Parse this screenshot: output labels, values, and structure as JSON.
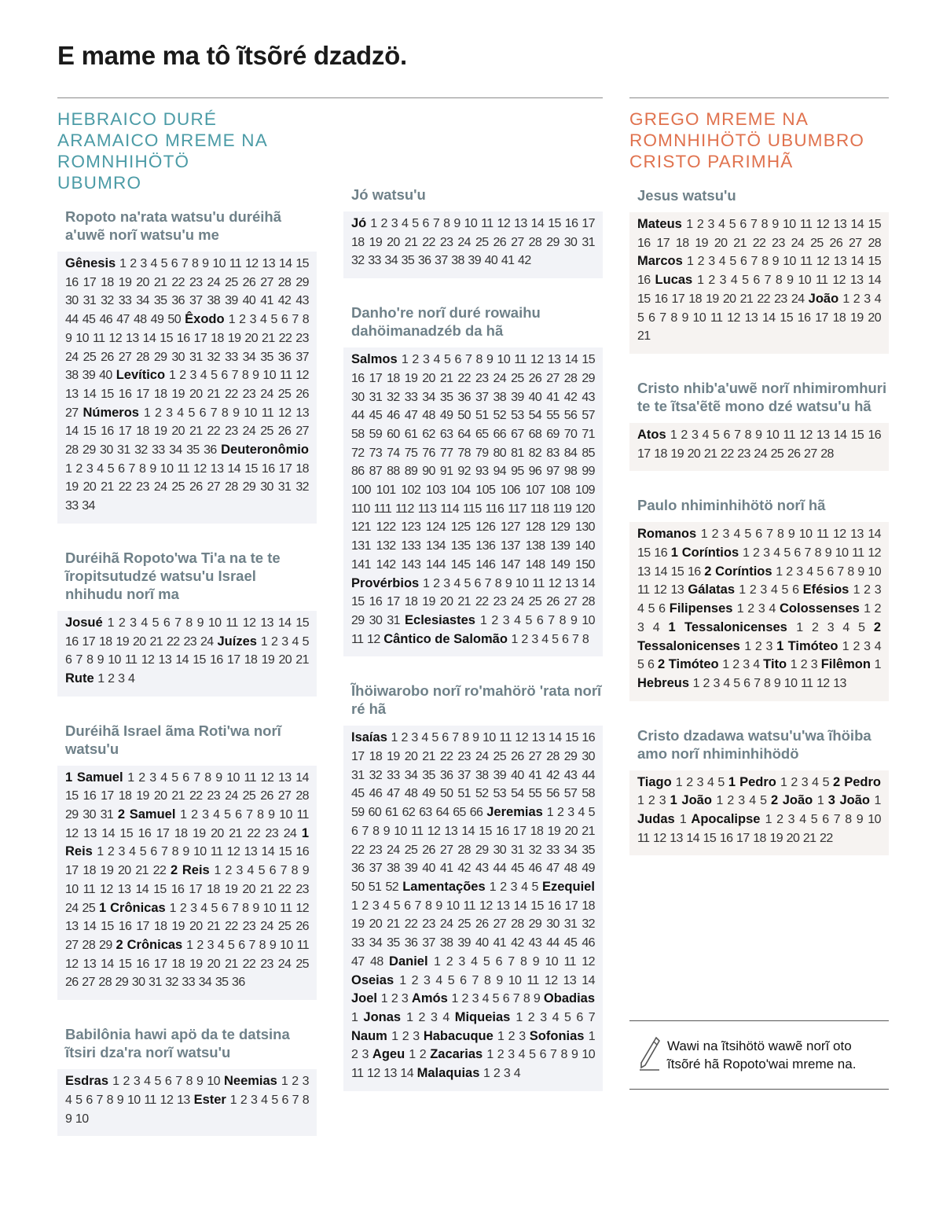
{
  "title": "E mame ma tô ĩtsõré dzadzö.",
  "colors": {
    "hebrew_heading": "#4b9ba6",
    "greek_heading": "#e0724e",
    "subheading": "#6f8189"
  },
  "hebrew": {
    "heading": "HEBRAICO DURÉ ARAMAICO MREME NA ROMNHIHÖTÖ UBUMRO",
    "sections": [
      {
        "title": "Ropoto na'rata watsu'u duréihã a'uwẽ norĩ watsu'u me",
        "books": [
          {
            "name": "Gênesis",
            "chapters": 50
          },
          {
            "name": "Êxodo",
            "chapters": 40
          },
          {
            "name": "Levítico",
            "chapters": 27
          },
          {
            "name": "Números",
            "chapters": 36
          },
          {
            "name": "Deuteronômio",
            "chapters": 34
          }
        ]
      },
      {
        "title": "Duréihã Ropoto'wa Ti'a na te te ĩropitsutudzé watsu'u Israel nhihudu norĩ ma",
        "books": [
          {
            "name": "Josué",
            "chapters": 24
          },
          {
            "name": "Juízes",
            "chapters": 21
          },
          {
            "name": "Rute",
            "chapters": 4
          }
        ]
      },
      {
        "title": "Duréihã Israel ãma Roti'wa norĩ watsu'u",
        "books": [
          {
            "name": "1 Samuel",
            "chapters": 31
          },
          {
            "name": "2 Samuel",
            "chapters": 24
          },
          {
            "name": "1 Reis",
            "chapters": 22
          },
          {
            "name": "2 Reis",
            "chapters": 25
          },
          {
            "name": "1 Crônicas",
            "chapters": 29
          },
          {
            "name": "2 Crônicas",
            "chapters": 36
          }
        ]
      },
      {
        "title": "Babilônia hawi apö da te datsina ĩtsiri dza'ra norĩ watsu'u",
        "books": [
          {
            "name": "Esdras",
            "chapters": 10
          },
          {
            "name": "Neemias",
            "chapters": 13
          },
          {
            "name": "Ester",
            "chapters": 10
          }
        ]
      },
      {
        "title": "Jó watsu'u",
        "books": [
          {
            "name": "Jó",
            "chapters": 42
          }
        ]
      },
      {
        "title": "Danho're norĩ duré rowaihu dahöimanadzéb da hã",
        "books": [
          {
            "name": "Salmos",
            "chapters": 150
          },
          {
            "name": "Provérbios",
            "chapters": 31
          },
          {
            "name": "Eclesiastes",
            "chapters": 12
          },
          {
            "name": "Cântico de Salomão",
            "chapters": 8
          }
        ]
      },
      {
        "title": "Ĩhöiwarobo norĩ ro'mahörö 'rata norĩ ré hã",
        "books": [
          {
            "name": "Isaías",
            "chapters": 66
          },
          {
            "name": "Jeremias",
            "chapters": 52
          },
          {
            "name": "Lamentações",
            "chapters": 5
          },
          {
            "name": "Ezequiel",
            "chapters": 48
          },
          {
            "name": "Daniel",
            "chapters": 12
          },
          {
            "name": "Oseias",
            "chapters": 14
          },
          {
            "name": "Joel",
            "chapters": 3
          },
          {
            "name": "Amós",
            "chapters": 9
          },
          {
            "name": "Obadias",
            "chapters": 1
          },
          {
            "name": "Jonas",
            "chapters": 4
          },
          {
            "name": "Miqueias",
            "chapters": 7
          },
          {
            "name": "Naum",
            "chapters": 3
          },
          {
            "name": "Habacuque",
            "chapters": 3
          },
          {
            "name": "Sofonias",
            "chapters": 3
          },
          {
            "name": "Ageu",
            "chapters": 2
          },
          {
            "name": "Zacarias",
            "chapters": 14
          },
          {
            "name": "Malaquias",
            "chapters": 4
          }
        ]
      }
    ]
  },
  "greek": {
    "heading": "GREGO MREME NA ROMNHIHÖTÖ UBUMBRO CRISTO PARIMHÃ",
    "sections": [
      {
        "title": "Jesus watsu'u",
        "books": [
          {
            "name": "Mateus",
            "chapters": 28
          },
          {
            "name": "Marcos",
            "chapters": 16
          },
          {
            "name": "Lucas",
            "chapters": 24
          },
          {
            "name": "João",
            "chapters": 21
          }
        ]
      },
      {
        "title": "Cristo nhib'a'uwẽ norĩ nhimiromhuri te te ĩtsa'ẽtẽ mono dzé watsu'u hã",
        "books": [
          {
            "name": "Atos",
            "chapters": 28
          }
        ]
      },
      {
        "title": "Paulo nhiminhihötö norĩ hã",
        "books": [
          {
            "name": "Romanos",
            "chapters": 16
          },
          {
            "name": "1 Coríntios",
            "chapters": 16
          },
          {
            "name": "2 Coríntios",
            "chapters": 13
          },
          {
            "name": "Gálatas",
            "chapters": 6
          },
          {
            "name": "Efésios",
            "chapters": 6
          },
          {
            "name": "Filipenses",
            "chapters": 4
          },
          {
            "name": "Colossenses",
            "chapters": 4
          },
          {
            "name": "1 Tessalonicenses",
            "chapters": 5
          },
          {
            "name": "2 Tessalonicenses",
            "chapters": 3
          },
          {
            "name": "1 Timóteo",
            "chapters": 6
          },
          {
            "name": "2 Timóteo",
            "chapters": 4
          },
          {
            "name": "Tito",
            "chapters": 3
          },
          {
            "name": "Filêmon",
            "chapters": 1
          },
          {
            "name": "Hebreus",
            "chapters": 13
          }
        ]
      },
      {
        "title": "Cristo dzadawa watsu'u'wa ĩhöiba amo norĩ nhiminhihödö",
        "books": [
          {
            "name": "Tiago",
            "chapters": 5
          },
          {
            "name": "1 Pedro",
            "chapters": 5
          },
          {
            "name": "2 Pedro",
            "chapters": 3
          },
          {
            "name": "1 João",
            "chapters": 5
          },
          {
            "name": "2 João",
            "chapters": 1
          },
          {
            "name": "3 João",
            "chapters": 1
          },
          {
            "name": "Judas",
            "chapters": 1
          },
          {
            "name": "Apocalipse",
            "chapters": 22
          }
        ]
      }
    ]
  },
  "note": {
    "icon": "pencil-icon",
    "text": "Wawi na ĩtsihötö wawẽ norĩ oto ĩtsõré hã Ropoto'wai mreme na."
  }
}
